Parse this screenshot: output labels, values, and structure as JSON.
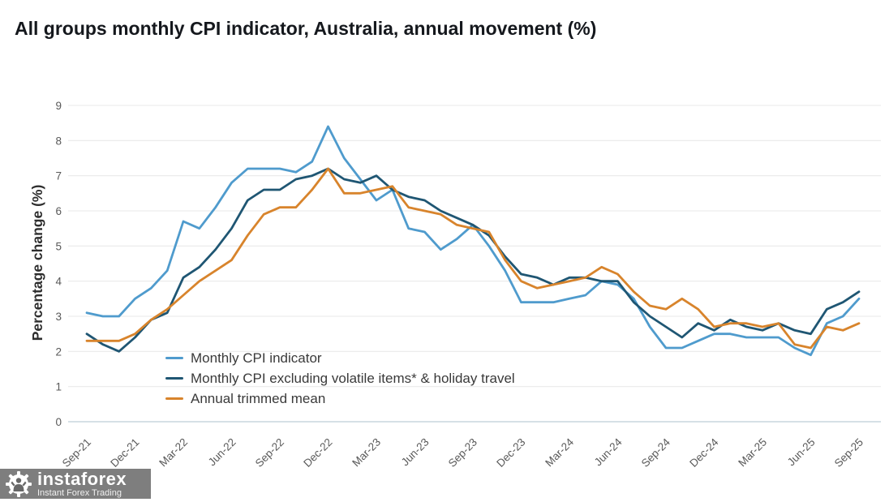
{
  "title": "All groups monthly CPI indicator, Australia, annual movement (%)",
  "watermark": {
    "brand": "instaforex",
    "tagline": "Instant Forex Trading"
  },
  "chart_data": {
    "type": "line",
    "title": "All groups monthly CPI indicator, Australia, annual movement (%)",
    "xlabel": "",
    "ylabel": "Percentage change (%)",
    "ylim": [
      0,
      9
    ],
    "y_ticks": [
      0,
      1,
      2,
      3,
      4,
      5,
      6,
      7,
      8,
      9
    ],
    "grid": true,
    "legend_position": "inside bottom-left",
    "x": [
      "Sep-21",
      "Oct-21",
      "Nov-21",
      "Dec-21",
      "Jan-22",
      "Feb-22",
      "Mar-22",
      "Apr-22",
      "May-22",
      "Jun-22",
      "Jul-22",
      "Aug-22",
      "Sep-22",
      "Oct-22",
      "Nov-22",
      "Dec-22",
      "Jan-23",
      "Feb-23",
      "Mar-23",
      "Apr-23",
      "May-23",
      "Jun-23",
      "Jul-23",
      "Aug-23",
      "Sep-23",
      "Oct-23",
      "Nov-23",
      "Dec-23",
      "Jan-24",
      "Feb-24",
      "Mar-24",
      "Apr-24",
      "May-24",
      "Jun-24",
      "Jul-24",
      "Aug-24",
      "Sep-24",
      "Oct-24",
      "Nov-24",
      "Dec-24",
      "Jan-25",
      "Feb-25",
      "Mar-25",
      "Apr-25",
      "May-25",
      "Jun-25",
      "Jul-25",
      "Aug-25",
      "Sep-25"
    ],
    "x_tick_labels": [
      "Sep-21",
      "Dec-21",
      "Mar-22",
      "Jun-22",
      "Sep-22",
      "Dec-22",
      "Mar-23",
      "Jun-23",
      "Sep-23",
      "Dec-23",
      "Mar-24",
      "Jun-24",
      "Sep-24",
      "Dec-24",
      "Mar-25",
      "Jun-25",
      "Sep-25"
    ],
    "x_tick_every_n_months": 3,
    "series": [
      {
        "name": "Monthly CPI indicator",
        "color": "#4f9bcd",
        "values": [
          3.1,
          3.0,
          3.0,
          3.5,
          3.8,
          4.3,
          5.7,
          5.5,
          6.1,
          6.8,
          7.2,
          7.2,
          7.2,
          7.1,
          7.4,
          8.4,
          7.5,
          6.9,
          6.3,
          6.6,
          5.5,
          5.4,
          4.9,
          5.2,
          5.6,
          5.0,
          4.3,
          3.4,
          3.4,
          3.4,
          3.5,
          3.6,
          4.0,
          3.9,
          3.5,
          2.7,
          2.1,
          2.1,
          2.3,
          2.5,
          2.5,
          2.4,
          2.4,
          2.4,
          2.1,
          1.9,
          2.8,
          3.0,
          3.5
        ]
      },
      {
        "name": "Monthly CPI excluding volatile items* & holiday travel",
        "color": "#1f5673",
        "values": [
          2.5,
          2.2,
          2.0,
          2.4,
          2.9,
          3.1,
          4.1,
          4.4,
          4.9,
          5.5,
          6.3,
          6.6,
          6.6,
          6.9,
          7.0,
          7.2,
          6.9,
          6.8,
          7.0,
          6.6,
          6.4,
          6.3,
          6.0,
          5.8,
          5.6,
          5.3,
          4.7,
          4.2,
          4.1,
          3.9,
          4.1,
          4.1,
          4.0,
          4.0,
          3.4,
          3.0,
          2.7,
          2.4,
          2.8,
          2.6,
          2.9,
          2.7,
          2.6,
          2.8,
          2.6,
          2.5,
          3.2,
          3.4,
          3.7
        ]
      },
      {
        "name": "Annual trimmed mean",
        "color": "#d8842c",
        "values": [
          2.3,
          2.3,
          2.3,
          2.5,
          2.9,
          3.2,
          3.6,
          4.0,
          4.3,
          4.6,
          5.3,
          5.9,
          6.1,
          6.1,
          6.6,
          7.2,
          6.5,
          6.5,
          6.6,
          6.7,
          6.1,
          6.0,
          5.9,
          5.6,
          5.5,
          5.4,
          4.6,
          4.0,
          3.8,
          3.9,
          4.0,
          4.1,
          4.4,
          4.2,
          3.7,
          3.3,
          3.2,
          3.5,
          3.2,
          2.7,
          2.8,
          2.8,
          2.7,
          2.8,
          2.2,
          2.1,
          2.7,
          2.6,
          2.8
        ]
      }
    ]
  },
  "style": {
    "gridline_color": "#e9e9e9",
    "baseline_color": "#c8d5de",
    "tick_label_color": "#595959",
    "axis_title_color": "#2e2e2e",
    "background": "#ffffff"
  }
}
